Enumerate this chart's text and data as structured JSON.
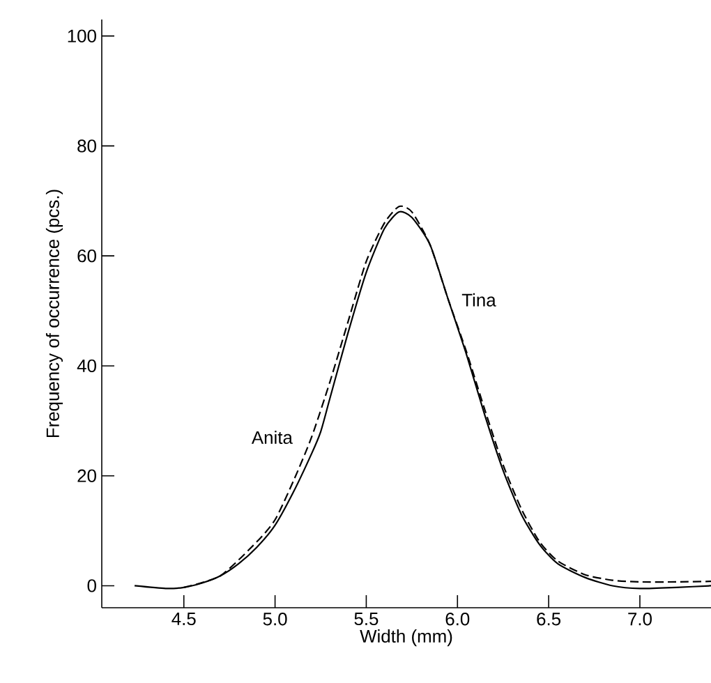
{
  "chart_data": {
    "type": "line",
    "xlabel": "Width (mm)",
    "ylabel": "Frequency of occurrence (pcs.)",
    "xlim": [
      4.05,
      7.39
    ],
    "ylim": [
      -4,
      103
    ],
    "xticks": [
      4.5,
      {
        "value": 5.0,
        "label": "5.0"
      },
      5.5,
      {
        "value": 6.0,
        "label": "6.0"
      },
      6.5,
      {
        "value": 7.0,
        "label": "7.0"
      }
    ],
    "yticks": [
      0,
      20,
      40,
      60,
      80,
      100
    ],
    "grid": false,
    "series": [
      {
        "name": "Tina",
        "color": "#000000",
        "line_style": "solid",
        "x": [
          4.23,
          4.4,
          4.5,
          4.6,
          4.7,
          4.8,
          4.9,
          5.0,
          5.1,
          5.2,
          5.25,
          5.3,
          5.4,
          5.5,
          5.6,
          5.68,
          5.75,
          5.85,
          5.95,
          6.05,
          6.15,
          6.25,
          6.35,
          6.45,
          6.55,
          6.7,
          6.85,
          7.0,
          7.2,
          7.39
        ],
        "values": [
          0,
          -0.5,
          -0.3,
          0.5,
          1.8,
          4,
          7,
          11,
          17,
          24,
          28,
          34,
          46,
          57,
          65,
          68,
          67,
          62,
          52,
          42,
          31,
          21,
          13,
          7.5,
          4,
          1.5,
          0,
          -0.5,
          -0.3,
          0
        ]
      },
      {
        "name": "Anita",
        "color": "#000000",
        "line_style": "dashed",
        "x": [
          4.5,
          4.7,
          4.9,
          5.0,
          5.1,
          5.2,
          5.3,
          5.4,
          5.5,
          5.6,
          5.68,
          5.75,
          5.85,
          5.95,
          6.05,
          6.15,
          6.25,
          6.35,
          6.45,
          6.55,
          6.7,
          6.85,
          7.0,
          7.2,
          7.39
        ],
        "values": [
          -0.3,
          1.8,
          8,
          12,
          19,
          27,
          37,
          48,
          59,
          66,
          69,
          68,
          62,
          52,
          42.5,
          32,
          22,
          14,
          8,
          4.5,
          2,
          1,
          0.7,
          0.7,
          0.8
        ]
      }
    ]
  }
}
